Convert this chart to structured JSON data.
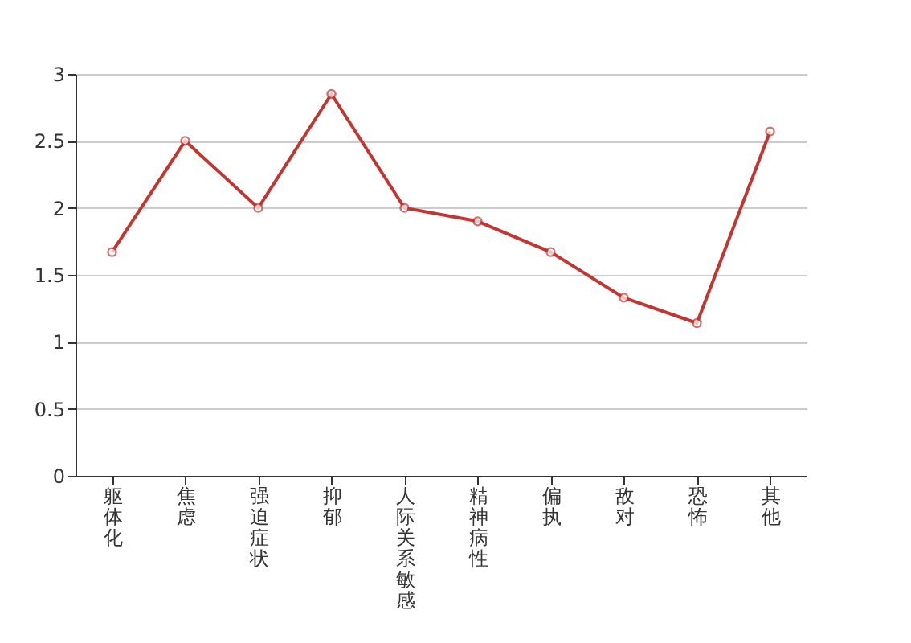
{
  "chart_data": {
    "type": "line",
    "categories": [
      "躯体化",
      "焦虑",
      "强迫症状",
      "抑郁",
      "人际关系敏感",
      "精神病性",
      "偏执",
      "敌对",
      "恐怖",
      "其他"
    ],
    "series": [
      {
        "color": "#c23531",
        "values": [
          1.67,
          2.5,
          2.0,
          2.85,
          2.0,
          1.9,
          1.67,
          1.33,
          1.14,
          2.57
        ]
      }
    ],
    "ylim": [
      0,
      3
    ],
    "yticks": [
      0,
      0.5,
      1,
      1.5,
      2,
      2.5,
      3
    ],
    "grid": "y",
    "marker": "circle",
    "line_style": "solid",
    "legend": false
  }
}
